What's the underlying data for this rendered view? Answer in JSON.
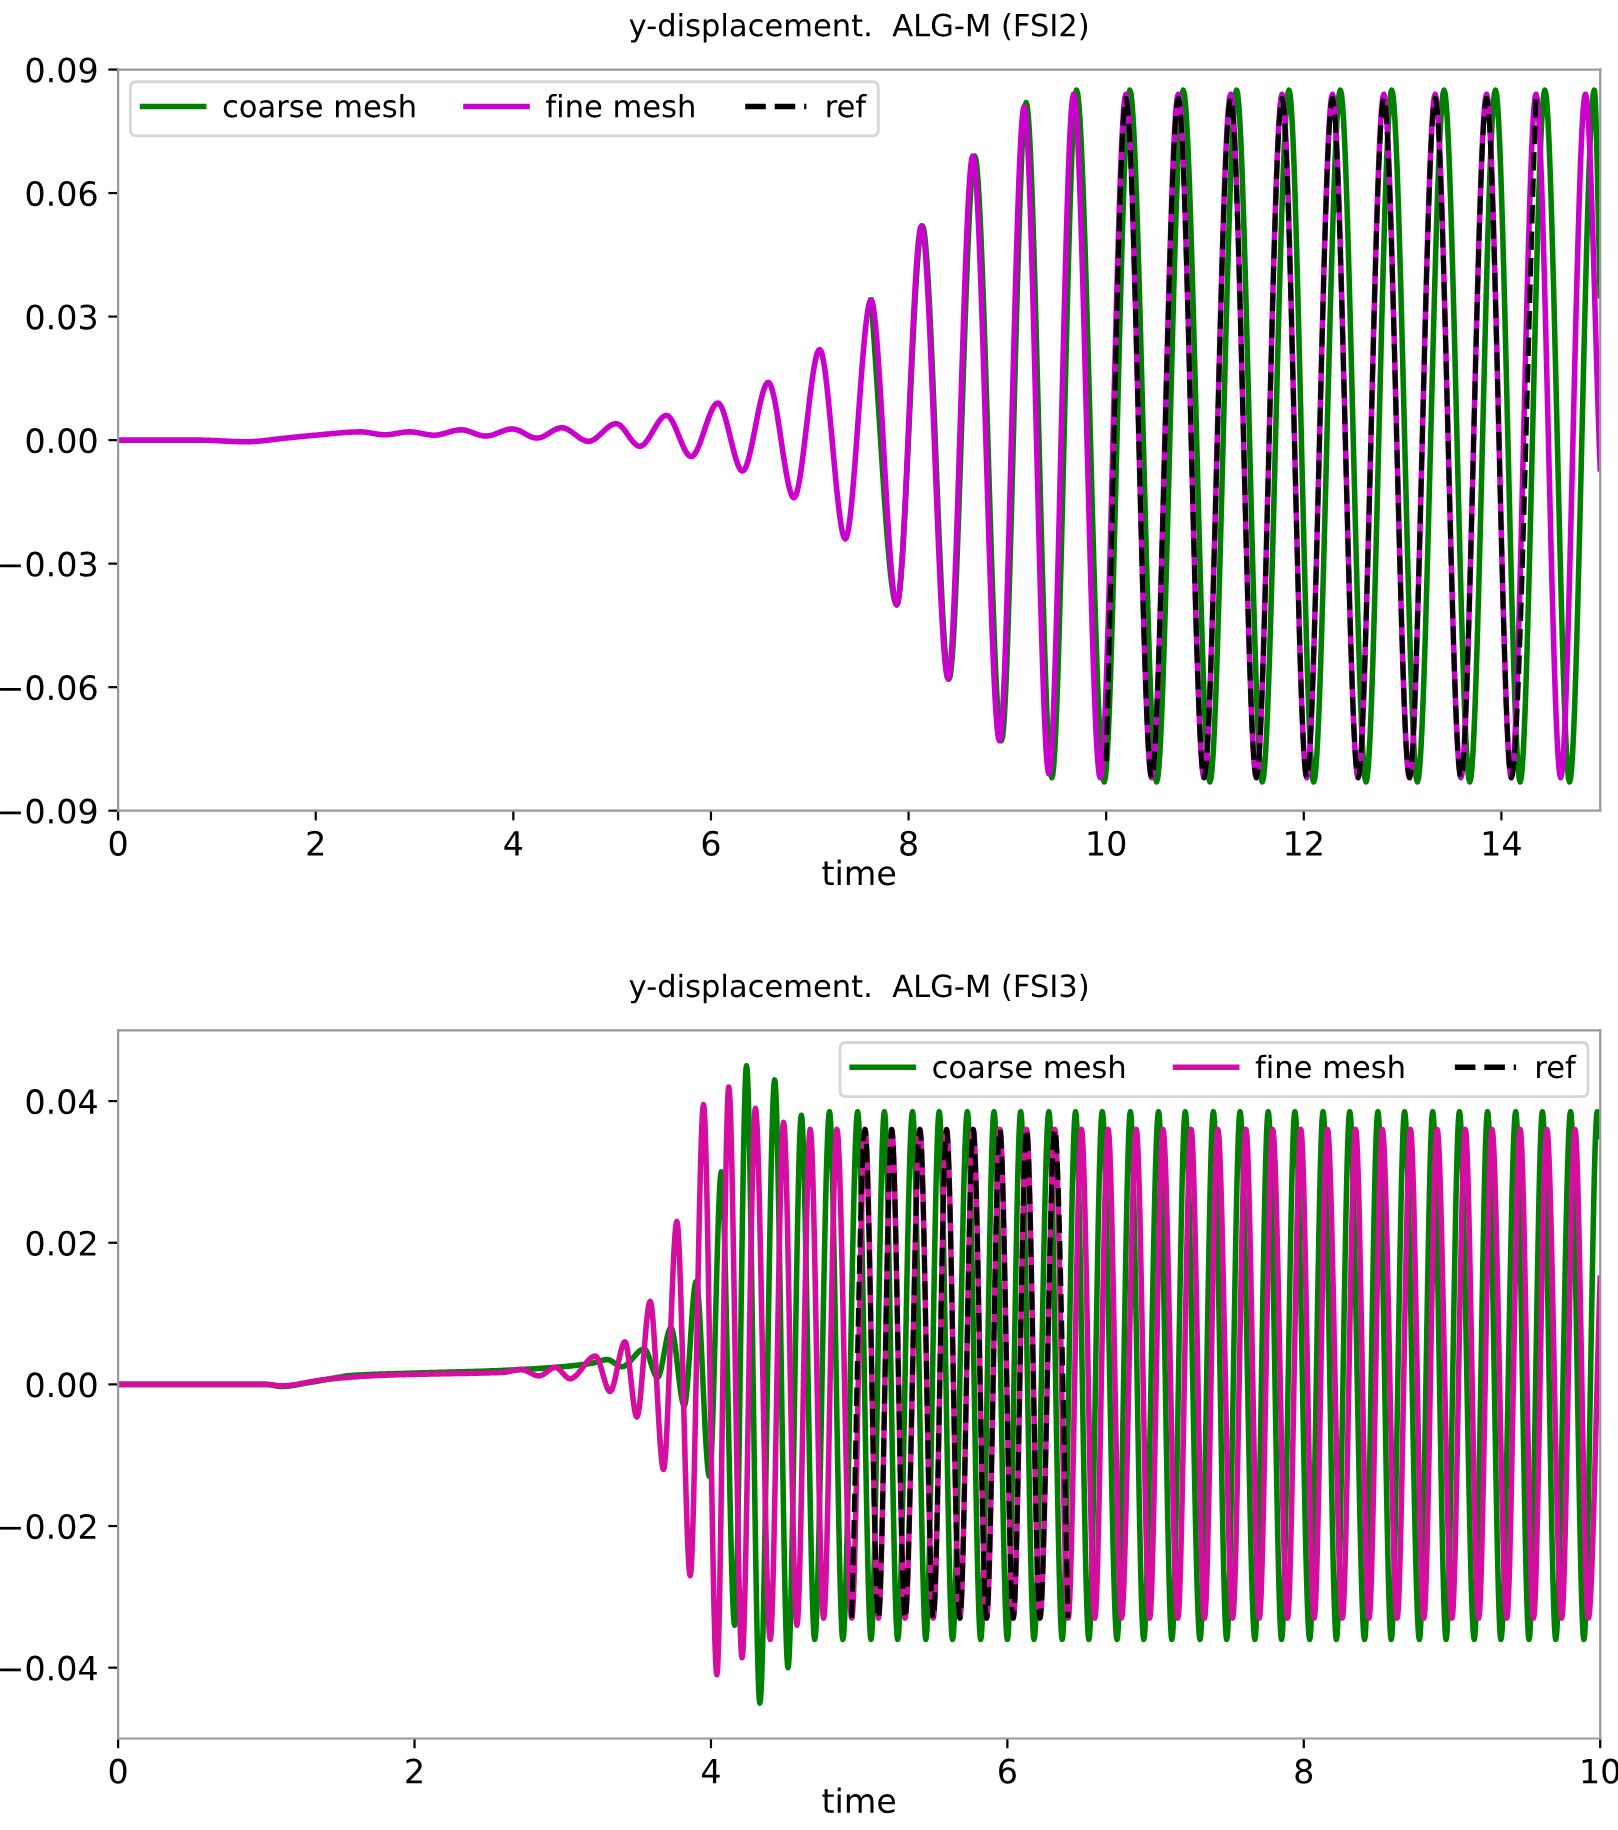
{
  "chart_data": [
    {
      "type": "line",
      "title": "y-displacement.  ALG-M (FSI2)",
      "xlabel": "time",
      "xlim": [
        0,
        15
      ],
      "xticks": [
        0,
        2,
        4,
        6,
        8,
        10,
        12,
        14
      ],
      "ylim": [
        -0.09,
        0.09
      ],
      "yticks": [
        {
          "value": -0.09,
          "label": "−0.09"
        },
        {
          "value": -0.06,
          "label": "−0.06"
        },
        {
          "value": -0.03,
          "label": "−0.03"
        },
        {
          "value": 0,
          "label": "0.00"
        },
        {
          "value": 0.03,
          "label": "0.03"
        },
        {
          "value": 0.06,
          "label": "0.06"
        },
        {
          "value": 0.09,
          "label": "0.09"
        }
      ],
      "legend": "top left",
      "series": [
        {
          "name": "coarse mesh",
          "color": "#008000",
          "line_style": "solid",
          "x": [
            7.62,
            7.88,
            8.14,
            8.41,
            8.67,
            8.94,
            9.19,
            9.45,
            9.7,
            9.98,
            10.24,
            10.51,
            10.78,
            11.05,
            11.32,
            11.58,
            11.85,
            12.1,
            12.37,
            12.63,
            12.89,
            13.15,
            13.42,
            13.68,
            13.94,
            14.19,
            14.44,
            14.69,
            14.94,
            15
          ],
          "values": [
            0.034,
            -0.04,
            0.052,
            -0.058,
            0.069,
            -0.073,
            0.082,
            -0.082,
            0.085,
            -0.083,
            0.085,
            -0.083,
            0.085,
            -0.083,
            0.085,
            -0.083,
            0.085,
            -0.083,
            0.085,
            -0.083,
            0.085,
            -0.083,
            0.085,
            -0.083,
            0.085,
            -0.083,
            0.085,
            -0.083,
            0.085,
            0.035
          ]
        },
        {
          "name": "fine mesh",
          "color": "#cc00cc",
          "line_style": "solid",
          "x": [
            0,
            0.8,
            1.3,
            1.7,
            2.0,
            2.45,
            2.7,
            2.95,
            3.2,
            3.47,
            3.72,
            3.99,
            4.24,
            4.49,
            4.76,
            5.04,
            5.28,
            5.55,
            5.8,
            6.07,
            6.32,
            6.58,
            6.84,
            7.1,
            7.36,
            7.62,
            7.88,
            8.13,
            8.4,
            8.65,
            8.92,
            9.17,
            9.42,
            9.67,
            9.94,
            10.2,
            10.46,
            10.73,
            10.99,
            11.26,
            11.52,
            11.78,
            12.03,
            12.29,
            12.55,
            12.81,
            13.07,
            13.33,
            13.59,
            13.85,
            14.1,
            14.35,
            14.6,
            14.85,
            15
          ],
          "values": [
            0,
            0,
            -0.0004,
            0.0005,
            0.0012,
            0.002,
            0.0013,
            0.002,
            0.0012,
            0.0025,
            0.001,
            0.0027,
            0.0005,
            0.003,
            -0.0003,
            0.004,
            -0.0015,
            0.006,
            -0.004,
            0.009,
            -0.0075,
            0.014,
            -0.014,
            0.022,
            -0.024,
            0.034,
            -0.04,
            0.052,
            -0.058,
            0.069,
            -0.073,
            0.081,
            -0.081,
            0.084,
            -0.082,
            0.084,
            -0.082,
            0.084,
            -0.082,
            0.084,
            -0.082,
            0.084,
            -0.082,
            0.084,
            -0.082,
            0.084,
            -0.082,
            0.084,
            -0.082,
            0.084,
            -0.082,
            0.084,
            -0.082,
            0.084,
            -0.007
          ]
        },
        {
          "name": "ref",
          "color": "#000000",
          "line_style": "dashed",
          "x": [
            10.0,
            10.2,
            10.46,
            10.73,
            10.99,
            11.26,
            11.52,
            11.78,
            12.03,
            12.29,
            12.55,
            12.81,
            13.07,
            13.33,
            13.59,
            13.85,
            14.1,
            14.35
          ],
          "values": [
            -0.078,
            0.083,
            -0.082,
            0.083,
            -0.082,
            0.083,
            -0.082,
            0.083,
            -0.082,
            0.083,
            -0.082,
            0.083,
            -0.082,
            0.083,
            -0.082,
            0.083,
            -0.082,
            0.083
          ]
        }
      ]
    },
    {
      "type": "line",
      "title": "y-displacement.  ALG-M (FSI3)",
      "xlabel": "time",
      "xlim": [
        0,
        10
      ],
      "xticks": [
        0,
        2,
        4,
        6,
        8,
        10
      ],
      "ylim": [
        -0.05,
        0.05
      ],
      "yticks": [
        {
          "value": -0.04,
          "label": "−0.04"
        },
        {
          "value": -0.02,
          "label": "−0.02"
        },
        {
          "value": 0,
          "label": "0.00"
        },
        {
          "value": 0.02,
          "label": "0.02"
        },
        {
          "value": 0.04,
          "label": "0.04"
        }
      ],
      "legend": "top right",
      "series": [
        {
          "name": "coarse mesh",
          "color": "#008000",
          "line_style": "solid",
          "x": [
            0,
            1.0,
            1.1,
            1.3,
            1.6,
            2.0,
            2.5,
            2.8,
            3.0,
            3.2,
            3.3,
            3.4,
            3.55,
            3.64,
            3.73,
            3.82,
            3.9,
            3.99,
            4.07,
            4.16,
            4.24,
            4.33,
            4.43,
            4.52,
            4.61,
            4.7,
            4.8,
            4.89,
            4.99,
            5.08,
            5.17,
            5.26,
            5.36,
            5.45,
            5.54,
            5.63,
            5.73,
            5.82,
            5.91,
            6.0,
            6.09,
            6.18,
            6.28,
            6.37,
            6.46,
            6.55,
            6.64,
            6.74,
            6.83,
            6.92,
            7.02,
            7.11,
            7.2,
            7.3,
            7.39,
            7.48,
            7.57,
            7.67,
            7.76,
            7.85,
            7.94,
            8.04,
            8.13,
            8.22,
            8.31,
            8.41,
            8.5,
            8.59,
            8.68,
            8.78,
            8.87,
            8.96,
            9.05,
            9.15,
            9.24,
            9.33,
            9.43,
            9.52,
            9.61,
            9.7,
            9.8,
            9.89,
            9.98,
            10
          ],
          "values": [
            0,
            0,
            -0.0003,
            0.0003,
            0.0013,
            0.0016,
            0.0019,
            0.0022,
            0.0025,
            0.003,
            0.0035,
            0.0025,
            0.005,
            0.001,
            0.008,
            -0.003,
            0.0145,
            -0.013,
            0.03,
            -0.034,
            0.045,
            -0.045,
            0.043,
            -0.04,
            0.038,
            -0.036,
            0.0385,
            -0.036,
            0.0385,
            -0.036,
            0.0385,
            -0.036,
            0.0385,
            -0.036,
            0.0385,
            -0.036,
            0.0385,
            -0.036,
            0.0385,
            -0.036,
            0.0385,
            -0.036,
            0.0385,
            -0.036,
            0.0385,
            -0.036,
            0.0385,
            -0.036,
            0.0385,
            -0.036,
            0.0385,
            -0.036,
            0.0385,
            -0.036,
            0.0385,
            -0.036,
            0.0385,
            -0.036,
            0.0385,
            -0.036,
            0.0385,
            -0.036,
            0.0385,
            -0.036,
            0.0385,
            -0.036,
            0.0385,
            -0.036,
            0.0385,
            -0.036,
            0.0385,
            -0.036,
            0.0385,
            -0.036,
            0.0385,
            -0.036,
            0.0385,
            -0.036,
            0.0385,
            -0.036,
            0.0385,
            -0.036,
            0.0385,
            0.035
          ]
        },
        {
          "name": "fine mesh",
          "color": "#d40fa0",
          "line_style": "solid",
          "x": [
            0,
            1.0,
            1.1,
            1.4,
            1.8,
            2.2,
            2.6,
            2.72,
            2.84,
            2.95,
            3.05,
            3.22,
            3.32,
            3.42,
            3.5,
            3.59,
            3.68,
            3.77,
            3.86,
            3.95,
            4.04,
            4.12,
            4.21,
            4.3,
            4.4,
            4.49,
            4.58,
            4.67,
            4.76,
            4.85,
            4.95,
            5.04,
            5.13,
            5.22,
            5.31,
            5.41,
            5.5,
            5.59,
            5.68,
            5.77,
            5.86,
            5.95,
            6.04,
            6.13,
            6.22,
            6.32,
            6.41,
            6.5,
            6.59,
            6.68,
            6.77,
            6.87,
            6.96,
            7.05,
            7.15,
            7.24,
            7.33,
            7.42,
            7.52,
            7.61,
            7.7,
            7.79,
            7.89,
            7.98,
            8.07,
            8.16,
            8.26,
            8.35,
            8.44,
            8.53,
            8.63,
            8.72,
            8.81,
            8.9,
            9.0,
            9.09,
            9.18,
            9.27,
            9.37,
            9.46,
            9.55,
            9.64,
            9.74,
            9.83,
            9.92,
            10
          ],
          "values": [
            0,
            0,
            -0.0002,
            0.0007,
            0.0013,
            0.0015,
            0.0017,
            0.0021,
            0.0012,
            0.0024,
            0.0008,
            0.004,
            -0.001,
            0.006,
            -0.0046,
            0.0117,
            -0.012,
            0.023,
            -0.027,
            0.0395,
            -0.041,
            0.042,
            -0.0386,
            0.039,
            -0.036,
            0.037,
            -0.034,
            0.036,
            -0.033,
            0.036,
            -0.033,
            0.036,
            -0.033,
            0.036,
            -0.033,
            0.036,
            -0.033,
            0.036,
            -0.033,
            0.036,
            -0.033,
            0.036,
            -0.033,
            0.036,
            -0.033,
            0.036,
            -0.033,
            0.036,
            -0.033,
            0.036,
            -0.033,
            0.036,
            -0.033,
            0.036,
            -0.033,
            0.036,
            -0.033,
            0.036,
            -0.033,
            0.036,
            -0.033,
            0.036,
            -0.033,
            0.036,
            -0.033,
            0.036,
            -0.033,
            0.036,
            -0.033,
            0.036,
            -0.033,
            0.036,
            -0.033,
            0.036,
            -0.033,
            0.036,
            -0.033,
            0.036,
            -0.033,
            0.036,
            -0.033,
            0.036,
            -0.033,
            0.036,
            -0.033,
            0.015
          ]
        },
        {
          "name": "ref",
          "color": "#000000",
          "line_style": "dashed",
          "x": [
            4.95,
            5.04,
            5.13,
            5.22,
            5.31,
            5.41,
            5.5,
            5.59,
            5.68,
            5.77,
            5.86,
            5.95,
            6.04,
            6.13,
            6.22,
            6.32,
            6.41
          ],
          "values": [
            -0.033,
            0.036,
            -0.033,
            0.036,
            -0.033,
            0.036,
            -0.033,
            0.036,
            -0.033,
            0.036,
            -0.033,
            0.036,
            -0.033,
            0.036,
            -0.033,
            0.036,
            -0.033
          ]
        }
      ]
    }
  ]
}
